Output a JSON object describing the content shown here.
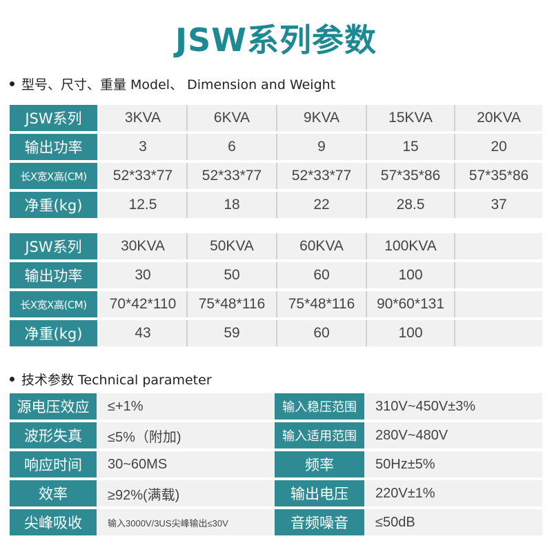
{
  "title": "JSW系列参数",
  "section1": "型号、尺寸、重量 Model、 Dimension and Weight",
  "section2": "技术参数 Technical parameter",
  "table1": {
    "rows": [
      [
        "JSW系列",
        "3KVA",
        "6KVA",
        "9KVA",
        "15KVA",
        "20KVA"
      ],
      [
        "输出功率",
        "3",
        "6",
        "9",
        "15",
        "20"
      ],
      [
        "长X宽X高(CM)",
        "52*33*77",
        "52*33*77",
        "52*33*77",
        "57*35*86",
        "57*35*86"
      ],
      [
        "净重(kg)",
        "12.5",
        "18",
        "22",
        "28.5",
        "37"
      ]
    ]
  },
  "table2": {
    "rows": [
      [
        "JSW系列",
        "30KVA",
        "50KVA",
        "60KVA",
        "100KVA",
        ""
      ],
      [
        "输出功率",
        "30",
        "50",
        "60",
        "100",
        ""
      ],
      [
        "长X宽X高(CM)",
        "70*42*110",
        "75*48*116",
        "75*48*116",
        "90*60*131",
        ""
      ],
      [
        "净重(kg)",
        "43",
        "59",
        "60",
        "100",
        ""
      ]
    ]
  },
  "tech": {
    "rows": [
      [
        "源电压效应",
        "≤+1%",
        "输入稳压范围",
        "310V~450V±3%"
      ],
      [
        "波形失真",
        "≤5%（附加)",
        "输入适用范围",
        "280V~480V"
      ],
      [
        "响应时间",
        "30~60MS",
        "频率",
        "50Hz±5%"
      ],
      [
        "效率",
        "≥92%(满载)",
        "输出电压",
        "220V±1%"
      ],
      [
        "尖峰吸收",
        "输入3000V/3US尖峰输出≤30V",
        "音频噪音",
        "≤50dB"
      ]
    ]
  },
  "colors": {
    "accent": "#2e8b94",
    "title": "#1d8a93",
    "cell_bg": "#f1f1f1"
  }
}
